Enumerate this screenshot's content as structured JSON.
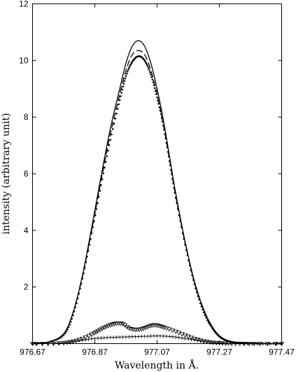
{
  "chart_data": {
    "type": "line",
    "title": "",
    "xlabel": "Wavelength in Å.",
    "ylabel": "intensity (arbitrary unit)",
    "xlim": [
      976.67,
      977.47
    ],
    "ylim": [
      0,
      12
    ],
    "x_ticks": [
      976.67,
      976.87,
      977.07,
      977.27,
      977.47
    ],
    "x_tick_labels": [
      "976.67",
      "976.87",
      "977.07",
      "977.27",
      "977.47"
    ],
    "y_ticks": [
      2,
      4,
      6,
      8,
      10,
      12
    ],
    "y_tick_labels": [
      "2",
      "4",
      "6",
      "8",
      "10",
      "12"
    ],
    "grid": false,
    "legend": "none",
    "series": [
      {
        "style": "solid",
        "color": "#000000",
        "x": [
          976.67,
          976.72,
          976.77,
          976.8,
          976.83,
          976.86,
          976.89,
          976.92,
          976.95,
          976.97,
          976.99,
          977.01,
          977.03,
          977.05,
          977.07,
          977.09,
          977.11,
          977.13,
          977.16,
          977.19,
          977.22,
          977.25,
          977.28,
          977.32,
          977.36,
          977.41,
          977.47
        ],
        "y": [
          0.0,
          0.05,
          0.35,
          1.1,
          2.4,
          4.1,
          5.9,
          7.6,
          9.0,
          9.9,
          10.5,
          10.7,
          10.5,
          9.9,
          9.0,
          7.9,
          6.6,
          5.3,
          3.6,
          2.2,
          1.2,
          0.55,
          0.2,
          0.05,
          0.01,
          0.0,
          0.0
        ]
      },
      {
        "style": "dashed",
        "color": "#000000",
        "x": [
          976.67,
          976.72,
          976.77,
          976.8,
          976.83,
          976.86,
          976.89,
          976.92,
          976.95,
          976.97,
          976.99,
          977.01,
          977.03,
          977.05,
          977.07,
          977.09,
          977.11,
          977.13,
          977.16,
          977.19,
          977.22,
          977.25,
          977.28,
          977.32,
          977.36,
          977.41,
          977.47
        ],
        "y": [
          0.0,
          0.05,
          0.35,
          1.1,
          2.35,
          4.0,
          5.75,
          7.4,
          8.8,
          9.65,
          10.2,
          10.35,
          10.2,
          9.65,
          8.8,
          7.75,
          6.5,
          5.2,
          3.55,
          2.15,
          1.15,
          0.5,
          0.18,
          0.04,
          0.01,
          0.0,
          0.0
        ]
      },
      {
        "style": "dotted",
        "color": "#000000",
        "x": [
          976.67,
          976.72,
          976.77,
          976.8,
          976.83,
          976.86,
          976.89,
          976.92,
          976.95,
          976.97,
          976.99,
          977.01,
          977.03,
          977.05,
          977.07,
          977.09,
          977.11,
          977.13,
          977.16,
          977.19,
          977.22,
          977.25,
          977.28,
          977.32,
          977.36,
          977.41,
          977.47
        ],
        "y": [
          0.0,
          0.05,
          0.3,
          1.0,
          2.3,
          3.9,
          5.6,
          7.2,
          8.6,
          9.45,
          9.95,
          10.15,
          10.0,
          9.5,
          8.7,
          7.7,
          6.45,
          5.15,
          3.5,
          2.1,
          1.1,
          0.5,
          0.17,
          0.04,
          0.01,
          0.0,
          0.0
        ]
      },
      {
        "style": "triangles",
        "color": "#000000",
        "x": [
          976.67,
          976.72,
          976.77,
          976.8,
          976.83,
          976.86,
          976.88,
          976.9,
          976.92,
          976.94,
          976.96,
          976.98,
          977.0,
          977.02,
          977.04,
          977.06,
          977.08,
          977.1,
          977.13,
          977.16,
          977.19,
          977.22,
          977.25,
          977.28,
          977.31,
          977.35,
          977.4,
          977.47
        ],
        "y": [
          0.0,
          0.0,
          0.03,
          0.08,
          0.18,
          0.33,
          0.45,
          0.57,
          0.66,
          0.72,
          0.7,
          0.55,
          0.5,
          0.52,
          0.6,
          0.66,
          0.62,
          0.55,
          0.43,
          0.3,
          0.18,
          0.09,
          0.04,
          0.02,
          0.01,
          0.0,
          0.0,
          0.0
        ]
      },
      {
        "style": "plus",
        "color": "#000000",
        "x": [
          976.67,
          976.72,
          976.77,
          976.8,
          976.83,
          976.86,
          976.89,
          976.92,
          976.95,
          976.98,
          977.01,
          977.04,
          977.07,
          977.1,
          977.13,
          977.16,
          977.19,
          977.22,
          977.25,
          977.28,
          977.32,
          977.36,
          977.41,
          977.47
        ],
        "y": [
          0.0,
          0.0,
          0.03,
          0.07,
          0.12,
          0.17,
          0.2,
          0.22,
          0.23,
          0.24,
          0.25,
          0.26,
          0.27,
          0.26,
          0.23,
          0.18,
          0.13,
          0.08,
          0.04,
          0.02,
          0.01,
          0.0,
          0.0,
          0.0
        ]
      }
    ]
  }
}
